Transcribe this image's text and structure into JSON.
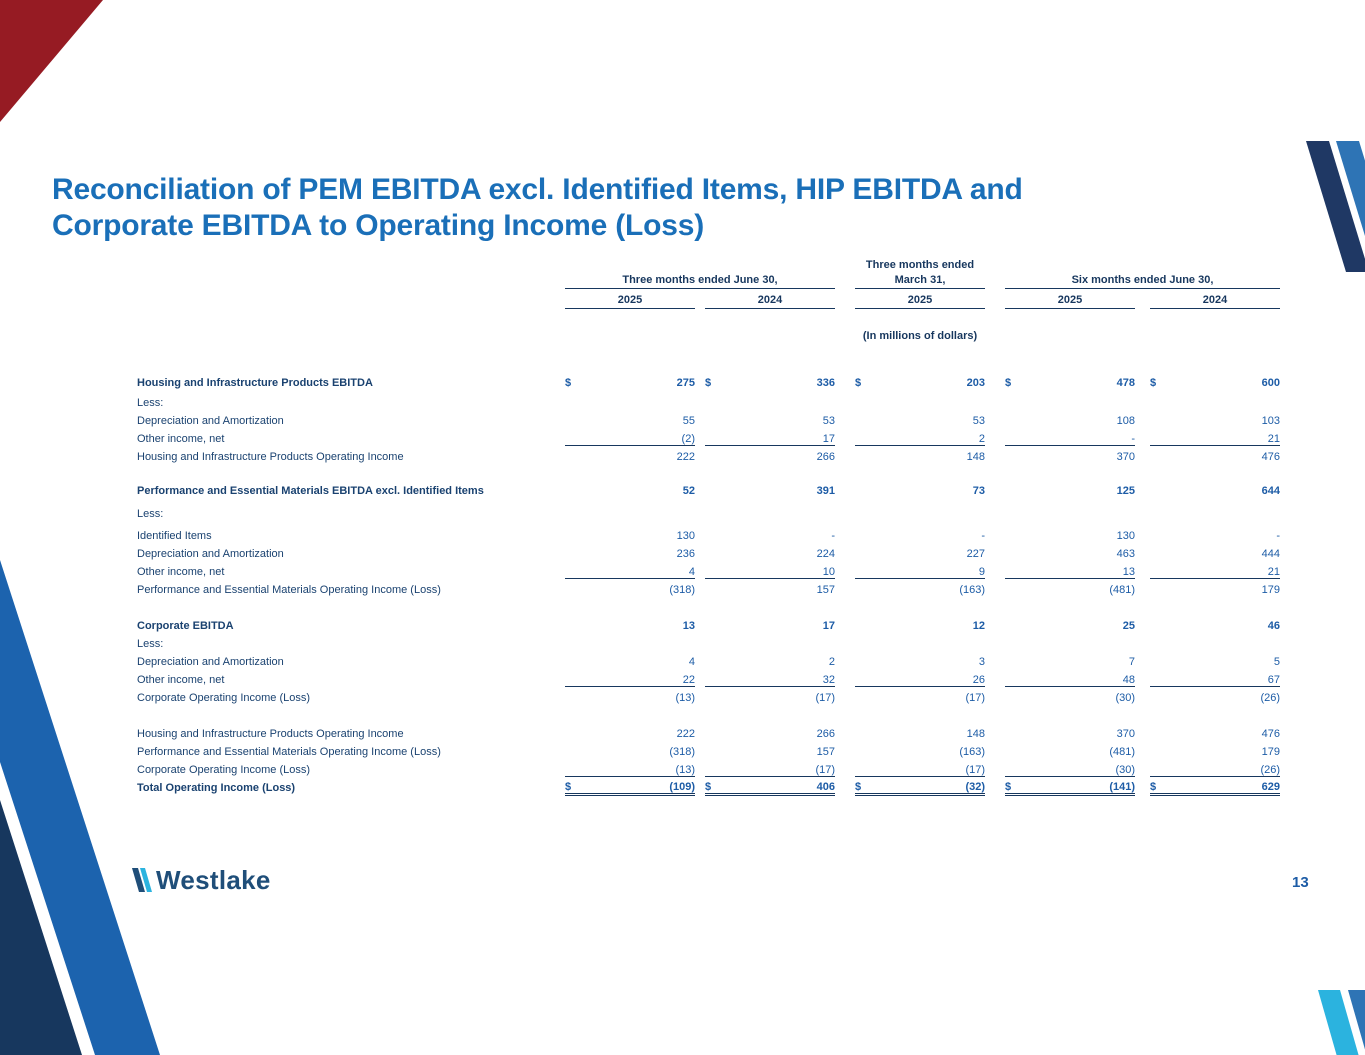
{
  "colors": {
    "title_blue": "#1A6FB8",
    "table_navy": "#17375E",
    "number_blue": "#1D5CA6",
    "deco_red": "#961B23",
    "deco_dark_navy": "#1F3864",
    "deco_medium_blue": "#2E74B5",
    "deco_bright_blue": "#1C63AE",
    "deco_cyan": "#2BB3DF"
  },
  "slide": {
    "title_lines": [
      "Reconciliation of PEM EBITDA excl. Identified Items, HIP EBITDA and",
      "Corporate EBITDA to Operating Income (Loss)"
    ],
    "page_number": "13",
    "logo_text": "Westlake"
  },
  "table": {
    "header": {
      "march_group_line1": "Three months ended",
      "groups": [
        "Three months ended June 30,",
        "March 31,",
        "Six months ended June 30,"
      ],
      "years": [
        "2025",
        "2024",
        "2025",
        "2025",
        "2024"
      ],
      "units_note": "(In millions of dollars)"
    },
    "rows": [
      {
        "label": "Housing and Infrastructure Products EBITDA",
        "bold": true,
        "dollar": true,
        "values": [
          "275",
          "336",
          "203",
          "478",
          "600"
        ]
      },
      {
        "label": "Less:",
        "values": null,
        "space": 2
      },
      {
        "label": "Depreciation and Amortization",
        "values": [
          "55",
          "53",
          "53",
          "108",
          "103"
        ]
      },
      {
        "label": "Other income, net",
        "values": [
          "(2)",
          "17",
          "2",
          "-",
          "21"
        ],
        "rule": "single"
      },
      {
        "label": "Housing and Infrastructure Products Operating Income",
        "values": [
          "222",
          "266",
          "148",
          "370",
          "476"
        ]
      },
      {
        "label": "Performance and Essential Materials EBITDA excl. Identified Items",
        "bold": true,
        "values": [
          "52",
          "391",
          "73",
          "125",
          "644"
        ],
        "space": 16
      },
      {
        "label": "Less:",
        "values": null,
        "space": 5
      },
      {
        "label": "Identified Items",
        "values": [
          "130",
          "-",
          "-",
          "130",
          "-"
        ],
        "space": 4
      },
      {
        "label": "Depreciation and Amortization",
        "values": [
          "236",
          "224",
          "227",
          "463",
          "444"
        ]
      },
      {
        "label": "Other income, net",
        "values": [
          "4",
          "10",
          "9",
          "13",
          "21"
        ],
        "rule": "single"
      },
      {
        "label": "Performance and Essential Materials Operating Income (Loss)",
        "values": [
          "(318)",
          "157",
          "(163)",
          "(481)",
          "179"
        ]
      },
      {
        "label": "Corporate EBITDA",
        "bold": true,
        "values": [
          "13",
          "17",
          "12",
          "25",
          "46"
        ],
        "space": 18
      },
      {
        "label": "Less:",
        "values": null
      },
      {
        "label": "Depreciation and Amortization",
        "values": [
          "4",
          "2",
          "3",
          "7",
          "5"
        ]
      },
      {
        "label": "Other income, net",
        "values": [
          "22",
          "32",
          "26",
          "48",
          "67"
        ],
        "rule": "single"
      },
      {
        "label": "Corporate Operating Income (Loss)",
        "values": [
          "(13)",
          "(17)",
          "(17)",
          "(30)",
          "(26)"
        ]
      },
      {
        "label": "Housing and Infrastructure Products Operating Income",
        "values": [
          "222",
          "266",
          "148",
          "370",
          "476"
        ],
        "space": 18
      },
      {
        "label": "Performance and Essential Materials Operating Income (Loss)",
        "values": [
          "(318)",
          "157",
          "(163)",
          "(481)",
          "179"
        ]
      },
      {
        "label": "Corporate Operating Income (Loss)",
        "values": [
          "(13)",
          "(17)",
          "(17)",
          "(30)",
          "(26)"
        ],
        "rule": "single"
      },
      {
        "label": "Total Operating Income (Loss)",
        "bold": true,
        "dollar": true,
        "values": [
          "(109)",
          "406",
          "(32)",
          "(141)",
          "629"
        ],
        "rule": "double"
      }
    ]
  }
}
